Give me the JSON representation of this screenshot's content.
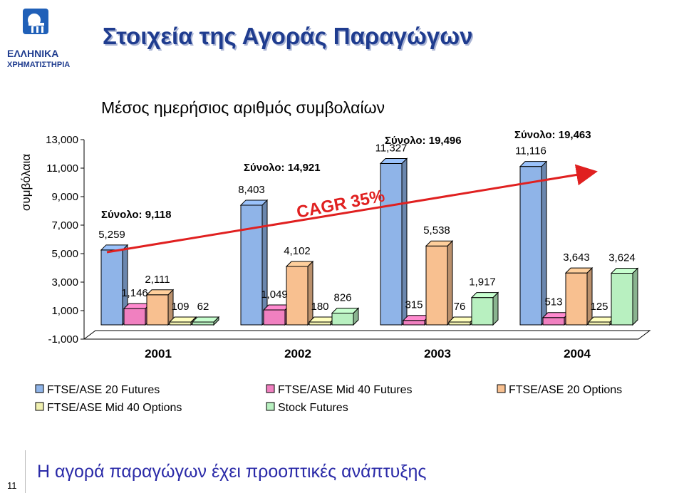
{
  "slide": {
    "title": "Στοιχεία της Αγοράς Παραγώγων",
    "logo_line1": "ΕΛΛΗΝΙΚΑ",
    "logo_line2": "ΧΡΗΜΑΤΙΣΤΗΡΙΑ",
    "footer": "Η αγορά παραγώγων έχει προοπτικές ανάπτυξης",
    "number": "11"
  },
  "chart_data": {
    "type": "bar",
    "title": "Μέσος ημερήσιος αριθμός συμβολαίων",
    "ylabel": "συμβόλαια",
    "xlabel": "",
    "ylim": [
      -1000,
      13000
    ],
    "yticks": [
      "13,000",
      "11,000",
      "9,000",
      "7,000",
      "5,000",
      "3,000",
      "1,000",
      "-1,000"
    ],
    "categories": [
      "2001",
      "2002",
      "2003",
      "2004"
    ],
    "series": [
      {
        "name": "FTSE/ASE 20 Futures",
        "color": "#8fb4e8",
        "values": [
          5259,
          8403,
          11327,
          11116
        ],
        "labels": [
          "5,259",
          "8,403",
          "11,327",
          "11,116"
        ]
      },
      {
        "name": "FTSE/ASE Mid 40 Futures",
        "color": "#f080c0",
        "values": [
          1146,
          1049,
          315,
          513
        ],
        "labels": [
          "1,146",
          "1,049",
          "315",
          "513"
        ]
      },
      {
        "name": "FTSE/ASE 20 Options",
        "color": "#f8c090",
        "values": [
          2111,
          4102,
          5538,
          3643
        ],
        "labels": [
          "2,111",
          "4,102",
          "5,538",
          "3,643"
        ]
      },
      {
        "name": "FTSE/ASE Mid 40 Options",
        "color": "#f0f0b0",
        "values": [
          109,
          180,
          76,
          125
        ],
        "labels": [
          "109",
          "180",
          "76",
          "125"
        ]
      },
      {
        "name": "Stock Futures",
        "color": "#b8f0c0",
        "values": [
          62,
          826,
          1917,
          3624
        ],
        "labels": [
          "62",
          "826",
          "1,917",
          "3,624"
        ]
      }
    ],
    "totals": [
      "Σύνολο: 9,118",
      "Σύνολο: 14,921",
      "Σύνολο: 19,496",
      "Σύνολο: 19,463"
    ],
    "annotation": "CAGR 35%",
    "legend_position": "bottom",
    "grid": false,
    "three_d": true,
    "trend_arrow_color": "#e02020",
    "annotation_color": "#e02020"
  }
}
